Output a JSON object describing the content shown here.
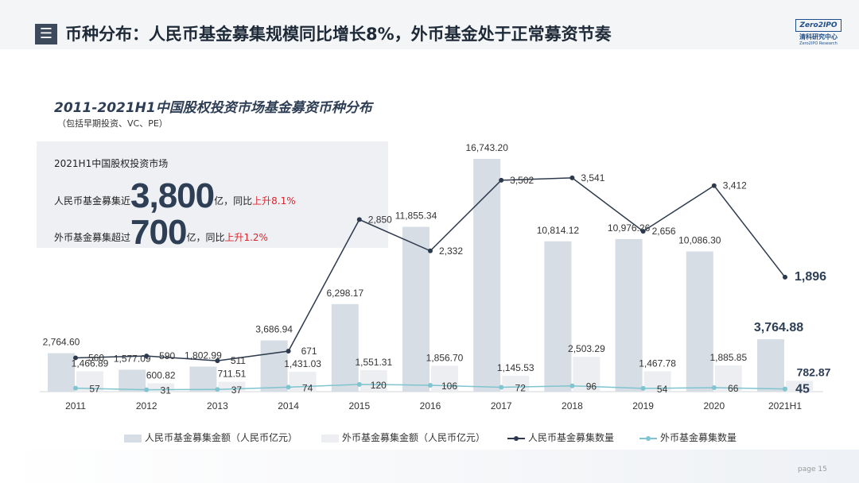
{
  "slide": {
    "title_icon": "menu-lines-icon",
    "title": "币种分布：人民币基金募集规模同比增长8%，外币基金处于正常募资节奏",
    "logo": {
      "box": "Zero2IPO",
      "cn": "清科研究中心",
      "en": "Zero2IPO Research"
    },
    "page_label": "page 15"
  },
  "callout": {
    "heading": "2021H1中国股权投资市场",
    "rmb": {
      "prefix": "人民币基金募集近",
      "value": "3,800",
      "suffix": "亿，同比",
      "change": "上升8.1%"
    },
    "fx": {
      "prefix": "外币基金募集超过",
      "value": "700",
      "suffix": "亿，同比",
      "change": "上升1.2%"
    }
  },
  "colors": {
    "rmb_bar": "#d6dde5",
    "fx_bar": "#eceef1",
    "rmb_line": "#2d3a4d",
    "fx_line": "#7fc4cf",
    "highlight_red": "#d9262d"
  },
  "chart_data": {
    "type": "bar+line",
    "title": "2011-2021H1中国股权投资市场基金募资币种分布",
    "subtitle": "（包括早期投资、VC、PE）",
    "categories": [
      "2011",
      "2012",
      "2013",
      "2014",
      "2015",
      "2016",
      "2017",
      "2018",
      "2019",
      "2020",
      "2021H1"
    ],
    "series": [
      {
        "name": "人民币基金募集金额（人民币亿元）",
        "kind": "bar",
        "axis": "left",
        "values": [
          2764.6,
          1577.09,
          1802.99,
          3686.94,
          6298.17,
          11855.34,
          16743.2,
          10814.12,
          10976.26,
          10086.3,
          3764.88
        ],
        "labels": [
          "2,764.60",
          "1,577.09",
          "1,802.99",
          "3,686.94",
          "6,298.17",
          "11,855.34",
          "16,743.20",
          "10,814.12",
          "10,976.26",
          "10,086.30",
          "3,764.88"
        ]
      },
      {
        "name": "外币基金募集金额（人民币亿元）",
        "kind": "bar",
        "axis": "left",
        "values": [
          1466.89,
          600.82,
          711.51,
          1431.03,
          1551.31,
          1856.7,
          1145.53,
          2503.29,
          1467.78,
          1885.85,
          782.87
        ],
        "labels": [
          "1,466.89",
          "600.82",
          "711.51",
          "1,431.03",
          "1,551.31",
          "1,856.70",
          "1,145.53",
          "2,503.29",
          "1,467.78",
          "1,885.85",
          "782.87"
        ]
      },
      {
        "name": "人民币基金募集数量",
        "kind": "line",
        "axis": "right",
        "values": [
          560,
          590,
          511,
          671,
          2850,
          2332,
          3502,
          3541,
          2656,
          3412,
          1896
        ],
        "labels": [
          "560",
          "590",
          "511",
          "671",
          "2,850",
          "2,332",
          "3,502",
          "3,541",
          "2,656",
          "3,412",
          "1,896"
        ]
      },
      {
        "name": "外币基金募集数量",
        "kind": "line",
        "axis": "right",
        "values": [
          57,
          31,
          37,
          74,
          120,
          106,
          72,
          96,
          54,
          66,
          45
        ],
        "labels": [
          "57",
          "31",
          "37",
          "74",
          "120",
          "106",
          "72",
          "96",
          "54",
          "66",
          "45"
        ]
      }
    ],
    "ylim_left": [
      0,
      18000
    ],
    "ylim_right": [
      0,
      5000
    ],
    "grid": false,
    "legend_position": "bottom"
  }
}
